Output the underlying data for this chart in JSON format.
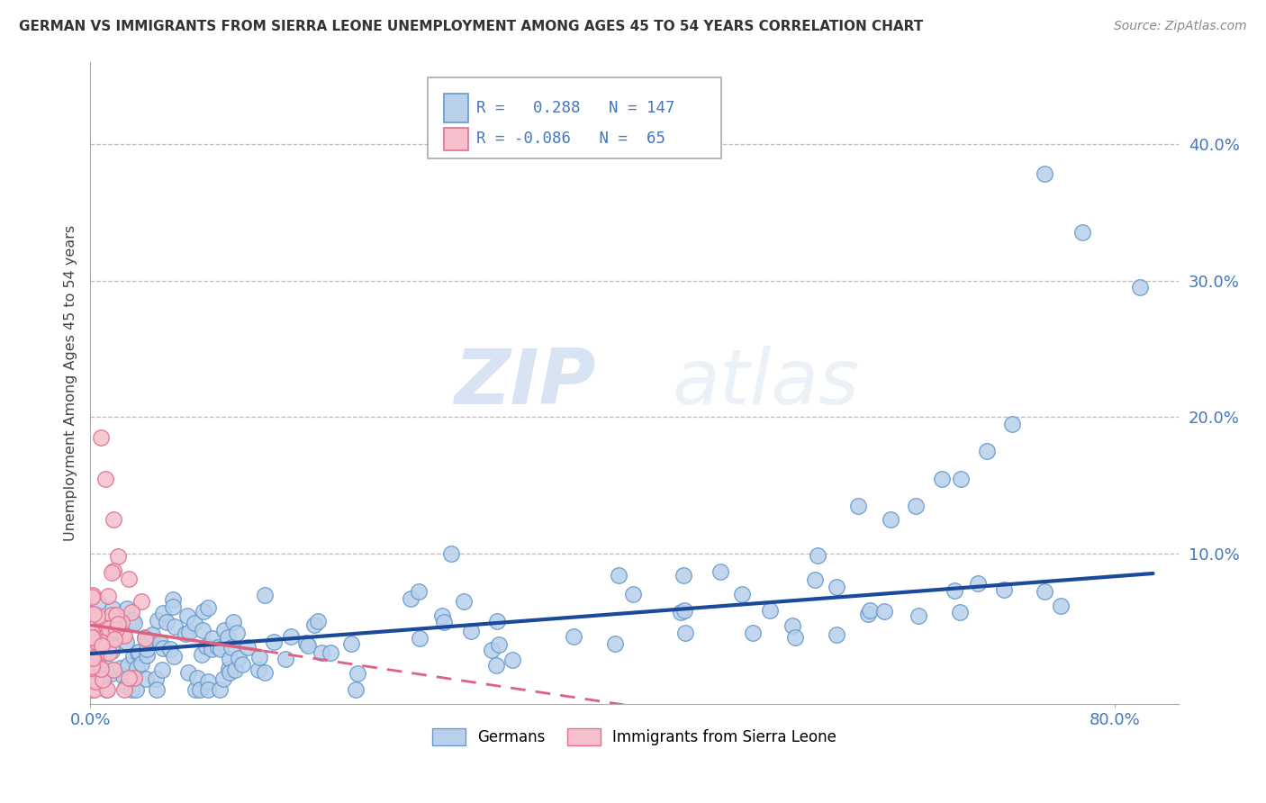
{
  "title": "GERMAN VS IMMIGRANTS FROM SIERRA LEONE UNEMPLOYMENT AMONG AGES 45 TO 54 YEARS CORRELATION CHART",
  "source": "Source: ZipAtlas.com",
  "ylabel": "Unemployment Among Ages 45 to 54 years",
  "xlim": [
    0.0,
    0.85
  ],
  "ylim": [
    -0.01,
    0.46
  ],
  "ytick_values": [
    0.1,
    0.2,
    0.3,
    0.4
  ],
  "ytick_labels": [
    "10.0%",
    "20.0%",
    "30.0%",
    "40.0%"
  ],
  "xtick_values": [
    0.0,
    0.8
  ],
  "xtick_labels": [
    "0.0%",
    "80.0%"
  ],
  "watermark_zip": "ZIP",
  "watermark_atlas": "atlas",
  "blue_scatter_color": "#b8d0ea",
  "blue_edge_color": "#6699cc",
  "pink_scatter_color": "#f5c0cc",
  "pink_edge_color": "#e07090",
  "blue_line_color": "#1a4a99",
  "pink_line_color": "#e06080",
  "grid_color": "#bbbbbb",
  "background_color": "#ffffff",
  "tick_color": "#4477bb",
  "legend_label_blue": "Germans",
  "legend_label_pink": "Immigrants from Sierra Leone",
  "blue_R": 0.288,
  "blue_N": 147,
  "pink_R": -0.086,
  "pink_N": 65,
  "seed": 42
}
